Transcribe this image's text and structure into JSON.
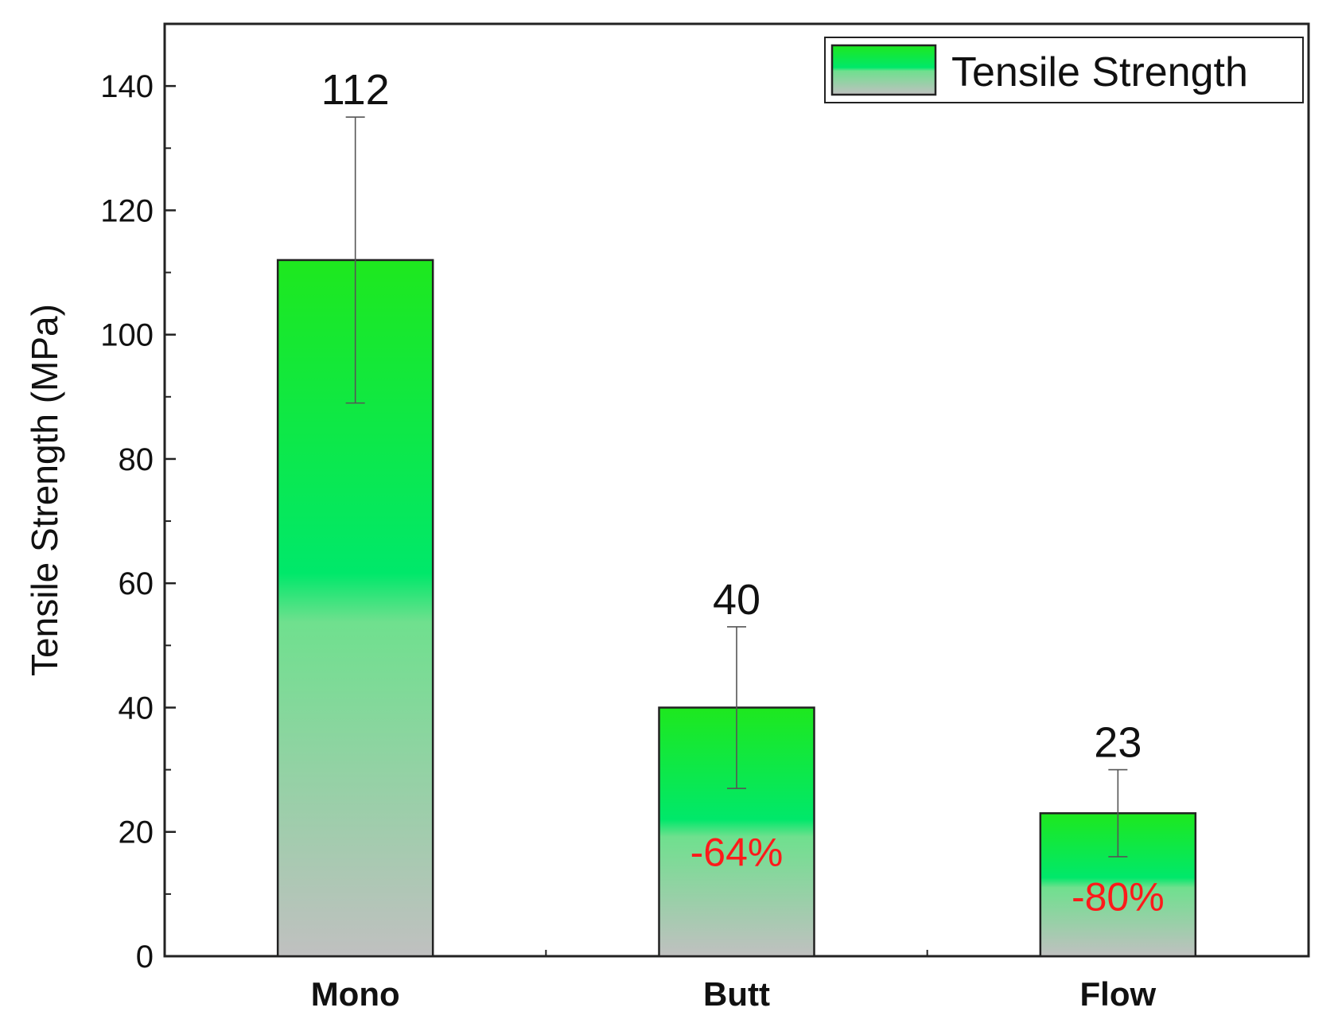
{
  "chart_data": {
    "type": "bar",
    "title": "",
    "xlabel": "",
    "ylabel": "Tensile Strength (MPa)",
    "ylim": [
      0,
      150
    ],
    "yticks": [
      0,
      20,
      40,
      60,
      80,
      100,
      120,
      140
    ],
    "categories": [
      "Mono",
      "Butt",
      "Flow"
    ],
    "series": [
      {
        "name": "Tensile Strength",
        "values": [
          112,
          40,
          23
        ],
        "error": [
          23,
          13,
          7
        ],
        "value_labels": [
          "112",
          "40",
          "23"
        ],
        "change_labels": [
          "",
          "-64%",
          "-80%"
        ]
      }
    ],
    "legend": "top-right",
    "grid": false,
    "colors": {
      "bar_top": "#1ee81e",
      "bar_mid": "#00e86a",
      "bar_bottom": "#c0c0c0",
      "change_text": "#ff1a1a",
      "axis": "#222222"
    }
  }
}
